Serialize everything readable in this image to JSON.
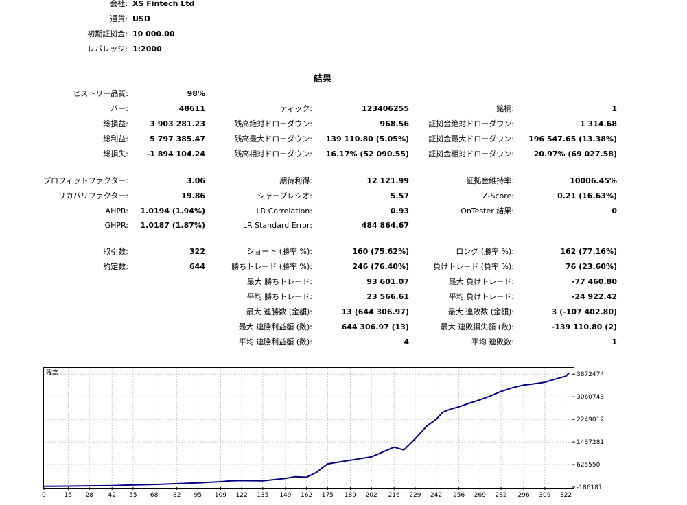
{
  "header": {
    "company_label": "会社:",
    "company": "XS Fintech Ltd",
    "currency_label": "通貨:",
    "currency": "USD",
    "deposit_label": "初期証拠金:",
    "deposit": "10 000.00",
    "leverage_label": "レバレッジ:",
    "leverage": "1:2000"
  },
  "results_title": "結果",
  "rows": [
    [
      "ヒストリー品質:",
      "98%"
    ],
    [
      "バー:",
      "48611",
      "ティック:",
      "123406255",
      "銘柄:",
      "1"
    ],
    [
      "総損益:",
      "3 903 281.23",
      "残高絶対ドローダウン:",
      "968.56",
      "証拠金絶対ドローダウン:",
      "1 314.68"
    ],
    [
      "総利益:",
      "5 797 385.47",
      "残高最大ドローダウン:",
      "139 110.80 (5.05%)",
      "証拠金最大ドローダウン:",
      "196 547.65 (13.38%)"
    ],
    [
      "総損失:",
      "-1 894 104.24",
      "残高相対ドローダウン:",
      "16.17% (52 090.55)",
      "証拠金相対ドローダウン:",
      "20.97% (69 027.58)"
    ],
    [
      "プロフィットファクター:",
      "3.06",
      "期待利得:",
      "12 121.99",
      "証拠金維持率:",
      "10006.45%"
    ],
    [
      "リカバリファクター:",
      "19.86",
      "シャープレシオ:",
      "5.57",
      "Z-Score:",
      "0.21 (16.63%)"
    ],
    [
      "AHPR:",
      "1.0194 (1.94%)",
      "LR Correlation:",
      "0.93",
      "OnTester 結果:",
      "0"
    ],
    [
      "GHPR:",
      "1.0187 (1.87%)",
      "LR Standard Error:",
      "484 864.67"
    ],
    [
      "取引数:",
      "322",
      "ショート (勝率 %):",
      "160 (75.62%)",
      "ロング (勝率 %):",
      "162 (77.16%)"
    ],
    [
      "約定数:",
      "644",
      "勝ちトレード (勝率 %):",
      "246 (76.40%)",
      "負けトレード (負率 %):",
      "76 (23.60%)"
    ],
    [
      "",
      "",
      "最大 勝ちトレード:",
      "93 601.07",
      "最大 負けトレード:",
      "-77 460.80"
    ],
    [
      "",
      "",
      "平均 勝ちトレード:",
      "23 566.61",
      "平均 負けトレード:",
      "-24 922.42"
    ],
    [
      "",
      "",
      "最大 連勝数 (金額):",
      "13 (644 306.97)",
      "最大 連敗数 (金額):",
      "3 (-107 402.80)"
    ],
    [
      "",
      "",
      "最大 連勝利益額 (数):",
      "644 306.97 (13)",
      "最大 連敗損失額 (数):",
      "-139 110.80 (2)"
    ],
    [
      "",
      "",
      "平均 連勝利益額 (数):",
      "4",
      "平均 連敗数:",
      "1"
    ]
  ],
  "chart_data": {
    "type": "line",
    "title": "残高",
    "series": [
      {
        "color": "#000080",
        "x": [
          0,
          15,
          28,
          42,
          55,
          68,
          82,
          95,
          109,
          115,
          122,
          135,
          149,
          155,
          162,
          168,
          175,
          189,
          202,
          210,
          216,
          222,
          229,
          236,
          242,
          246,
          250,
          256,
          262,
          269,
          276,
          282,
          289,
          296,
          302,
          309,
          316,
          322,
          324
        ],
        "y": [
          -155000,
          -150000,
          -140000,
          -130000,
          -105000,
          -90000,
          -60000,
          -30000,
          10000,
          40000,
          50000,
          40000,
          130000,
          190000,
          170000,
          340000,
          650000,
          780000,
          900000,
          1100000,
          1250000,
          1150000,
          1550000,
          2000000,
          2250000,
          2500000,
          2600000,
          2700000,
          2820000,
          2950000,
          3100000,
          3250000,
          3380000,
          3480000,
          3520000,
          3580000,
          3700000,
          3800000,
          3920000
        ]
      }
    ],
    "x_ticks": [
      "0",
      "15",
      "28",
      "42",
      "55",
      "68",
      "82",
      "95",
      "109",
      "122",
      "135",
      "149",
      "162",
      "175",
      "189",
      "202",
      "216",
      "229",
      "242",
      "256",
      "269",
      "282",
      "296",
      "309",
      "322"
    ],
    "y_ticks": [
      "3872474",
      "3060743",
      "2249012",
      "1437281",
      "625550",
      "-186181"
    ],
    "xlim": [
      0,
      326
    ],
    "ylim": [
      -186181,
      4100000
    ],
    "grid": true
  }
}
